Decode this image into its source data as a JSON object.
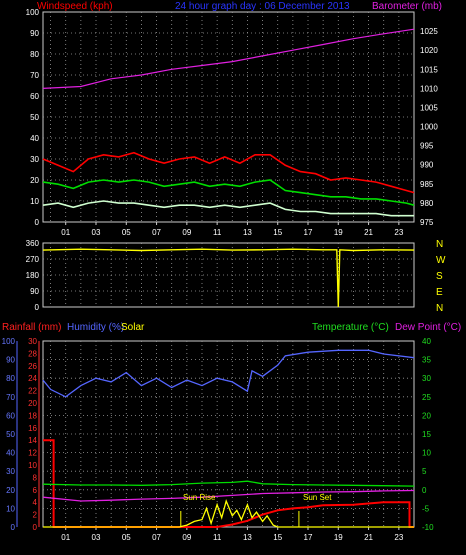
{
  "chart_data": [
    {
      "type": "line",
      "title": "24 hour graph day : 06 December 2013",
      "left_axis_label": "Windspeed (kph)",
      "right_axis_label": "Barometer (mb)",
      "x_ticks": [
        "01",
        "03",
        "05",
        "07",
        "09",
        "11",
        "13",
        "15",
        "17",
        "19",
        "21",
        "23"
      ],
      "x_range_hours": [
        -0.5,
        24
      ],
      "grid": true,
      "ylim_left": [
        0,
        100
      ],
      "yticks_left": [
        "0",
        "10",
        "20",
        "30",
        "40",
        "50",
        "60",
        "70",
        "80",
        "90",
        "100"
      ],
      "ylim_right": [
        975,
        1030
      ],
      "yticks_right": [
        "975",
        "980",
        "985",
        "990",
        "995",
        "1000",
        "1005",
        "1010",
        "1015",
        "1020",
        "1025"
      ],
      "series": [
        {
          "name": "Barometer (mb)",
          "axis": "right",
          "color": "#e020e0",
          "points": [
            [
              -0.5,
              1010
            ],
            [
              2,
              1010.5
            ],
            [
              4,
              1012.5
            ],
            [
              6,
              1013.5
            ],
            [
              8,
              1015
            ],
            [
              10,
              1016
            ],
            [
              12,
              1017
            ],
            [
              14,
              1018.5
            ],
            [
              16,
              1020
            ],
            [
              18,
              1021.5
            ],
            [
              20,
              1023
            ],
            [
              22,
              1024.3
            ],
            [
              24,
              1025.5
            ]
          ]
        },
        {
          "color": "#ff0000",
          "points": [
            [
              -0.5,
              30
            ],
            [
              0.5,
              27
            ],
            [
              1.5,
              24
            ],
            [
              2.5,
              30
            ],
            [
              3.5,
              32
            ],
            [
              4.5,
              31
            ],
            [
              5.5,
              33
            ],
            [
              6.5,
              30
            ],
            [
              7.5,
              28
            ],
            [
              8.5,
              30
            ],
            [
              9.5,
              31
            ],
            [
              10.5,
              28
            ],
            [
              11.5,
              31
            ],
            [
              12.5,
              28
            ],
            [
              13.5,
              32
            ],
            [
              14.5,
              32
            ],
            [
              15.5,
              27
            ],
            [
              16.5,
              24
            ],
            [
              17.5,
              23
            ],
            [
              18.5,
              20
            ],
            [
              19.5,
              21
            ],
            [
              20.5,
              20
            ],
            [
              21.5,
              19
            ],
            [
              22.5,
              17
            ],
            [
              23.5,
              15
            ],
            [
              24,
              14
            ]
          ]
        },
        {
          "color": "#00dd00",
          "points": [
            [
              -0.5,
              19
            ],
            [
              0.5,
              18
            ],
            [
              1.5,
              16
            ],
            [
              2.5,
              19
            ],
            [
              3.5,
              20
            ],
            [
              4.5,
              19
            ],
            [
              5.5,
              20
            ],
            [
              6.5,
              19
            ],
            [
              7.5,
              17
            ],
            [
              8.5,
              18
            ],
            [
              9.5,
              19
            ],
            [
              10.5,
              17
            ],
            [
              11.5,
              18
            ],
            [
              12.5,
              17
            ],
            [
              13.5,
              19
            ],
            [
              14.5,
              20
            ],
            [
              15.5,
              15
            ],
            [
              16.5,
              14
            ],
            [
              17.5,
              13
            ],
            [
              18.5,
              12
            ],
            [
              19.5,
              12
            ],
            [
              20.5,
              11
            ],
            [
              21.5,
              11
            ],
            [
              22.5,
              10
            ],
            [
              23.5,
              9
            ],
            [
              24,
              8
            ]
          ]
        },
        {
          "color": "#d0ffd0",
          "points": [
            [
              -0.5,
              8
            ],
            [
              0.5,
              9
            ],
            [
              1.5,
              7
            ],
            [
              2.5,
              9
            ],
            [
              3.5,
              10
            ],
            [
              4.5,
              9
            ],
            [
              5.5,
              9
            ],
            [
              6.5,
              8
            ],
            [
              7.5,
              7
            ],
            [
              8.5,
              8
            ],
            [
              9.5,
              8
            ],
            [
              10.5,
              7
            ],
            [
              11.5,
              8
            ],
            [
              12.5,
              7
            ],
            [
              13.5,
              8
            ],
            [
              14.5,
              9
            ],
            [
              15.5,
              6
            ],
            [
              16.5,
              5
            ],
            [
              17.5,
              5
            ],
            [
              18.5,
              4
            ],
            [
              19.5,
              4
            ],
            [
              20.5,
              4
            ],
            [
              21.5,
              4
            ],
            [
              22.5,
              3
            ],
            [
              23.5,
              3
            ],
            [
              24,
              3
            ]
          ]
        }
      ]
    },
    {
      "type": "line",
      "right_labels": [
        "N",
        "W",
        "S",
        "E",
        "N"
      ],
      "ylim": [
        0,
        360
      ],
      "yticks": [
        "0",
        "90",
        "180",
        "270",
        "360"
      ],
      "grid": true,
      "series": [
        {
          "color": "#ffff00",
          "points": [
            [
              -0.5,
              320
            ],
            [
              2,
              325
            ],
            [
              4,
              322
            ],
            [
              6,
              318
            ],
            [
              8,
              322
            ],
            [
              10,
              325
            ],
            [
              12,
              320
            ],
            [
              14,
              322
            ],
            [
              16,
              325
            ],
            [
              18,
              322
            ],
            [
              18.9,
              322
            ],
            [
              19,
              0
            ],
            [
              19.1,
              322
            ],
            [
              20,
              318
            ],
            [
              22,
              322
            ],
            [
              24,
              320
            ]
          ]
        }
      ]
    },
    {
      "type": "line",
      "labels": {
        "rainfall": "Rainfall (mm)",
        "humidity": "Humidity (%)",
        "solar": "Solar",
        "temperature": "Temperature (°C)",
        "dew_point": "Dew Point (°C)"
      },
      "annotations": [
        "Sun Rise",
        "Sun Set"
      ],
      "ylim_humidity": [
        0,
        100
      ],
      "yticks_humidity": [
        "0",
        "10",
        "20",
        "30",
        "40",
        "50",
        "60",
        "70",
        "80",
        "90",
        "100"
      ],
      "ylim_rain": [
        0,
        30
      ],
      "yticks_rain": [
        "0",
        "2",
        "4",
        "6",
        "8",
        "10",
        "12",
        "14",
        "16",
        "18",
        "20",
        "22",
        "24",
        "26",
        "28",
        "30"
      ],
      "ylim_temperature": [
        -10,
        40
      ],
      "yticks_temperature": [
        "-10",
        "-5",
        "0",
        "5",
        "10",
        "15",
        "20",
        "25",
        "30",
        "35",
        "40"
      ],
      "grid": true,
      "series": [
        {
          "color": "#ff0000",
          "points": [
            [
              -0.5,
              14
            ],
            [
              0.2,
              14
            ],
            [
              0.2,
              0
            ],
            [
              11,
              0
            ],
            [
              12,
              0.4
            ],
            [
              13,
              1
            ],
            [
              14,
              2
            ],
            [
              15,
              2.7
            ],
            [
              16,
              3
            ],
            [
              17,
              3.2
            ],
            [
              18,
              3.5
            ],
            [
              20,
              3.6
            ],
            [
              22,
              4
            ],
            [
              23.7,
              4
            ],
            [
              23.7,
              0
            ],
            [
              24,
              0
            ]
          ]
        },
        {
          "color": "#5566ff",
          "points": [
            [
              -0.5,
              79
            ],
            [
              0,
              74
            ],
            [
              1,
              70
            ],
            [
              2,
              76
            ],
            [
              3,
              80
            ],
            [
              4,
              78
            ],
            [
              5,
              83
            ],
            [
              6,
              76
            ],
            [
              7,
              80
            ],
            [
              8,
              75
            ],
            [
              9,
              79
            ],
            [
              10,
              76
            ],
            [
              11,
              80
            ],
            [
              12,
              78
            ],
            [
              13,
              73
            ],
            [
              13.3,
              84
            ],
            [
              14,
              81
            ],
            [
              15,
              87
            ],
            [
              15.5,
              92
            ],
            [
              17,
              94
            ],
            [
              19,
              95
            ],
            [
              21,
              95
            ],
            [
              22,
              93
            ],
            [
              24,
              91
            ]
          ]
        },
        {
          "color": "#00dd00",
          "axis": "temperature",
          "points": [
            [
              -0.5,
              1.5
            ],
            [
              2,
              1.3
            ],
            [
              4,
              1.3
            ],
            [
              6,
              1.2
            ],
            [
              8,
              1.4
            ],
            [
              10,
              1.8
            ],
            [
              12,
              2
            ],
            [
              13,
              2.3
            ],
            [
              14,
              1.6
            ],
            [
              16,
              1.4
            ],
            [
              18,
              1.3
            ],
            [
              20,
              1.2
            ],
            [
              22,
              1.1
            ],
            [
              24,
              1
            ]
          ]
        },
        {
          "color": "#e020e0",
          "axis": "temperature",
          "points": [
            [
              -0.5,
              -2
            ],
            [
              2,
              -3
            ],
            [
              4,
              -2.8
            ],
            [
              6,
              -2.5
            ],
            [
              8,
              -2.3
            ],
            [
              10,
              -2
            ],
            [
              12,
              -1.5
            ],
            [
              14,
              -1
            ],
            [
              16,
              -0.8
            ],
            [
              18,
              -0.6
            ],
            [
              20,
              -0.5
            ],
            [
              22,
              -0.3
            ],
            [
              24,
              -0.2
            ]
          ]
        },
        {
          "color": "#ffff00",
          "points": [
            [
              -0.5,
              0
            ],
            [
              8.5,
              0
            ],
            [
              9,
              1
            ],
            [
              9.5,
              3
            ],
            [
              10,
              4
            ],
            [
              10.3,
              10
            ],
            [
              10.6,
              2
            ],
            [
              11,
              12
            ],
            [
              11.3,
              5
            ],
            [
              11.6,
              14
            ],
            [
              12,
              6
            ],
            [
              12.3,
              9
            ],
            [
              12.6,
              4
            ],
            [
              13,
              12
            ],
            [
              13.3,
              5
            ],
            [
              13.6,
              8
            ],
            [
              14,
              3
            ],
            [
              14.3,
              6
            ],
            [
              14.7,
              1
            ],
            [
              15,
              0
            ],
            [
              24,
              0
            ]
          ]
        }
      ]
    }
  ]
}
